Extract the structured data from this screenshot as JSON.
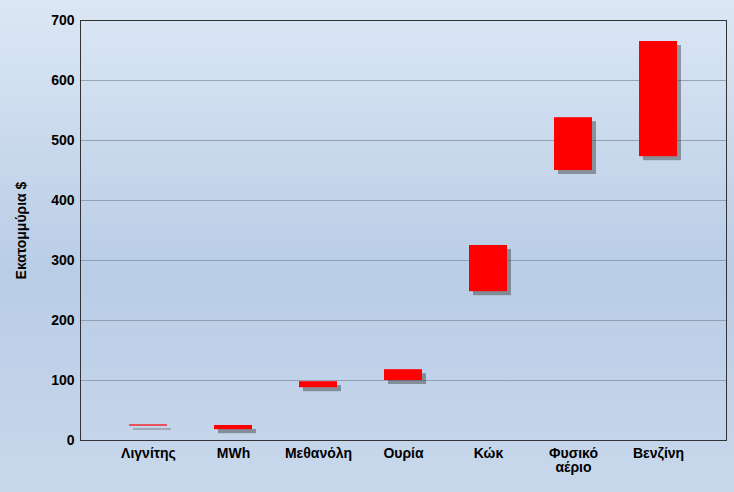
{
  "chart_data": {
    "type": "floating_bar",
    "y_label": "Εκατομμύρια $",
    "categories": [
      "Λιγνίτης",
      "MWh",
      "Μεθανόλη",
      "Ουρία",
      "Κώκ",
      "Φυσικό αέριο",
      "Βενζίνη"
    ],
    "values": [
      [
        24,
        26
      ],
      [
        18,
        25
      ],
      [
        88,
        98
      ],
      [
        100,
        118
      ],
      [
        248,
        325
      ],
      [
        450,
        538
      ],
      [
        473,
        665
      ]
    ],
    "color": "#ff0000",
    "ylim": [
      0,
      700
    ],
    "yticks": [
      0,
      100,
      200,
      300,
      400,
      500,
      600,
      700
    ],
    "grid": true
  }
}
